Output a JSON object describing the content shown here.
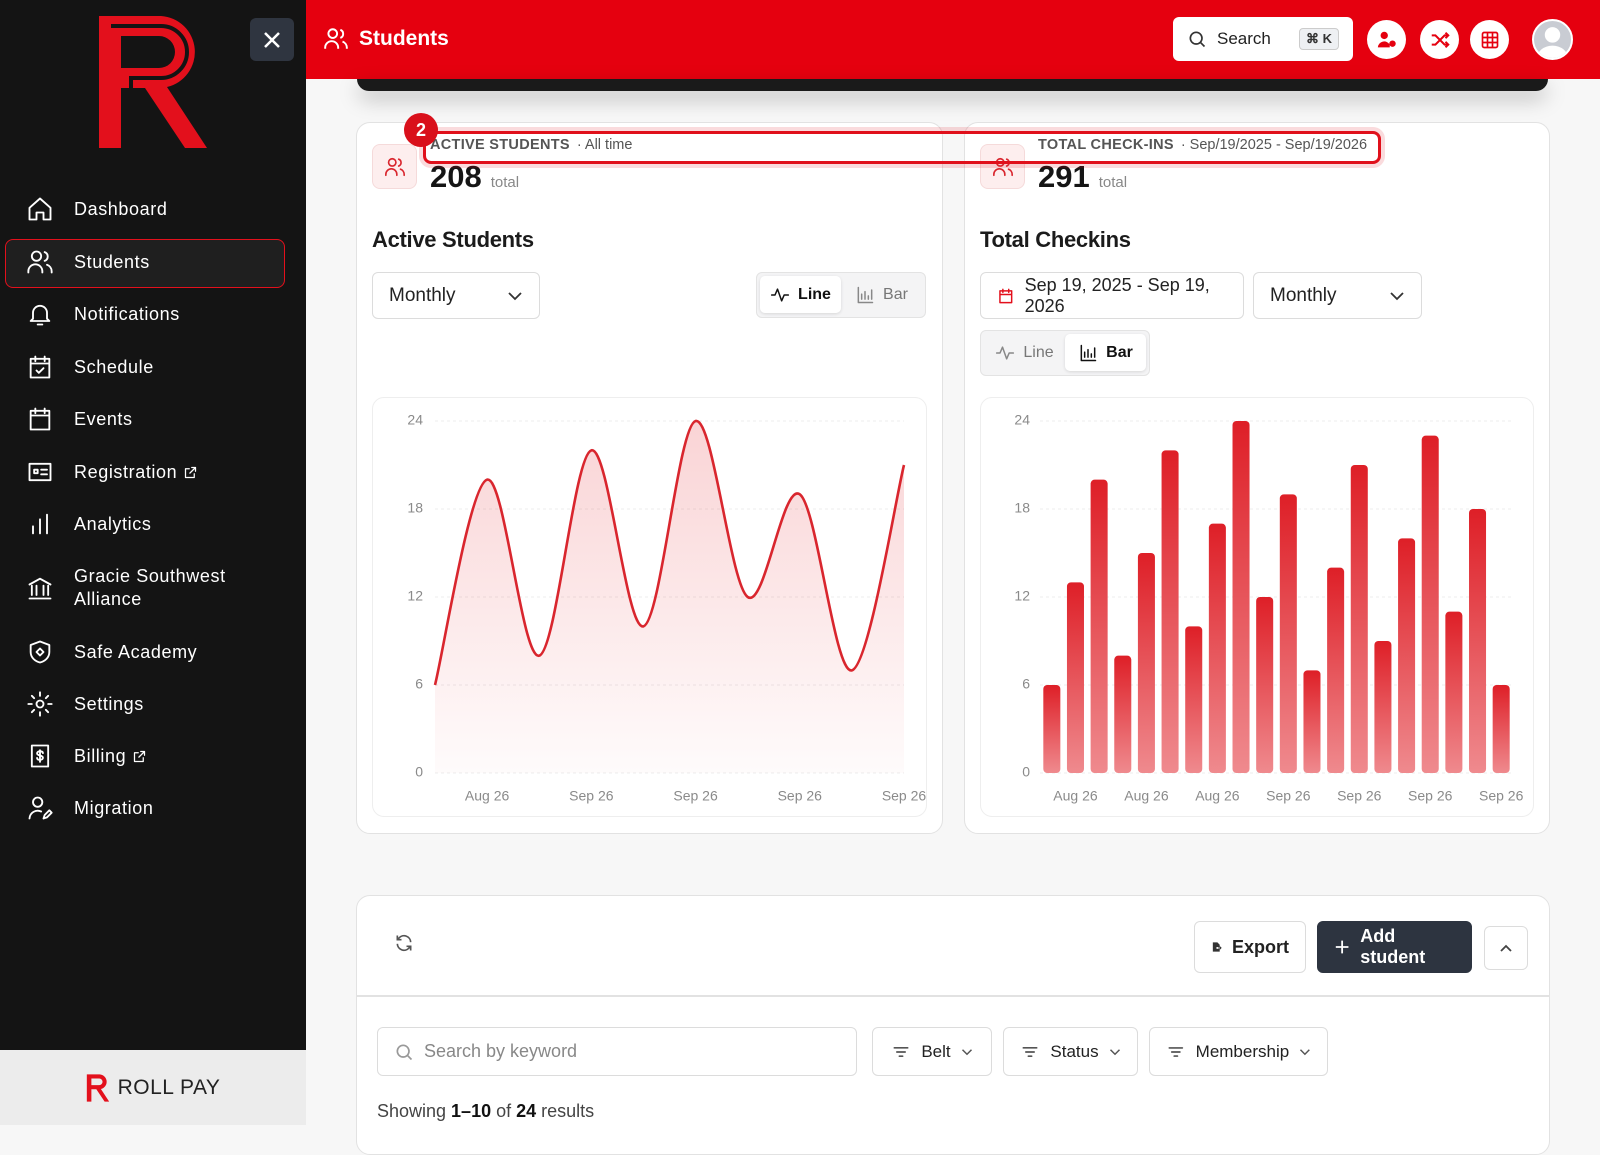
{
  "sidebar": {
    "nav": [
      "Dashboard",
      "Students",
      "Notifications",
      "Schedule",
      "Events",
      "Registration",
      "Analytics",
      "Gracie Southwest Alliance",
      "Safe Academy",
      "Settings",
      "Billing",
      "Migration"
    ],
    "brand": "ROLL PAY"
  },
  "header": {
    "title": "Students",
    "search": "Search",
    "shortcut": "⌘ K"
  },
  "highlight_badge": "2",
  "stats": [
    {
      "label": "ACTIVE STUDENTS",
      "period": "· All time",
      "value": 208,
      "unit": "total"
    },
    {
      "label": "TOTAL CHECK-INS",
      "period": "· Sep/19/2025 - Sep/19/2026",
      "value": 291,
      "unit": "total"
    }
  ],
  "panels": [
    {
      "interval": "Monthly",
      "line": "Line",
      "bar": "Bar"
    },
    {
      "date_range": "Sep 19, 2025 - Sep 19, 2026",
      "interval": "Monthly",
      "line": "Line",
      "bar": "Bar"
    }
  ],
  "chart_data": [
    {
      "type": "line",
      "title": "Active Students",
      "categories": [
        null,
        "Aug 26",
        null,
        "Sep 26",
        null,
        "Sep 26",
        null,
        "Sep 26",
        null,
        "Sep 26"
      ],
      "values": [
        6,
        20,
        8,
        22,
        10,
        24,
        12,
        19,
        7,
        21
      ],
      "color": "#d9262e",
      "ylim": [
        0,
        24
      ],
      "yticks": [
        0,
        6,
        12,
        18,
        24
      ],
      "grid": true
    },
    {
      "type": "bar",
      "title": "Total Checkins",
      "categories": [
        null,
        "Aug 26",
        null,
        null,
        "Aug 26",
        null,
        null,
        "Aug 26",
        null,
        null,
        "Sep 26",
        null,
        null,
        "Sep 26",
        null,
        null,
        "Sep 26",
        null,
        null,
        "Sep 26"
      ],
      "values": [
        6,
        13,
        20,
        8,
        15,
        22,
        10,
        17,
        24,
        12,
        19,
        7,
        14,
        21,
        9,
        16,
        23,
        11,
        18,
        6
      ],
      "color": "#e0262d",
      "ylim": [
        0,
        24
      ],
      "yticks": [
        0,
        6,
        12,
        18,
        24
      ],
      "grid": true
    }
  ],
  "table": {
    "export": "Export",
    "add": "Add student",
    "search_placeholder": "Search by keyword",
    "filters": [
      "Belt",
      "Status",
      "Membership"
    ],
    "showing": {
      "prefix": "Showing",
      "range": "1–10",
      "of": "of",
      "total": 24,
      "suffix": "results"
    }
  }
}
